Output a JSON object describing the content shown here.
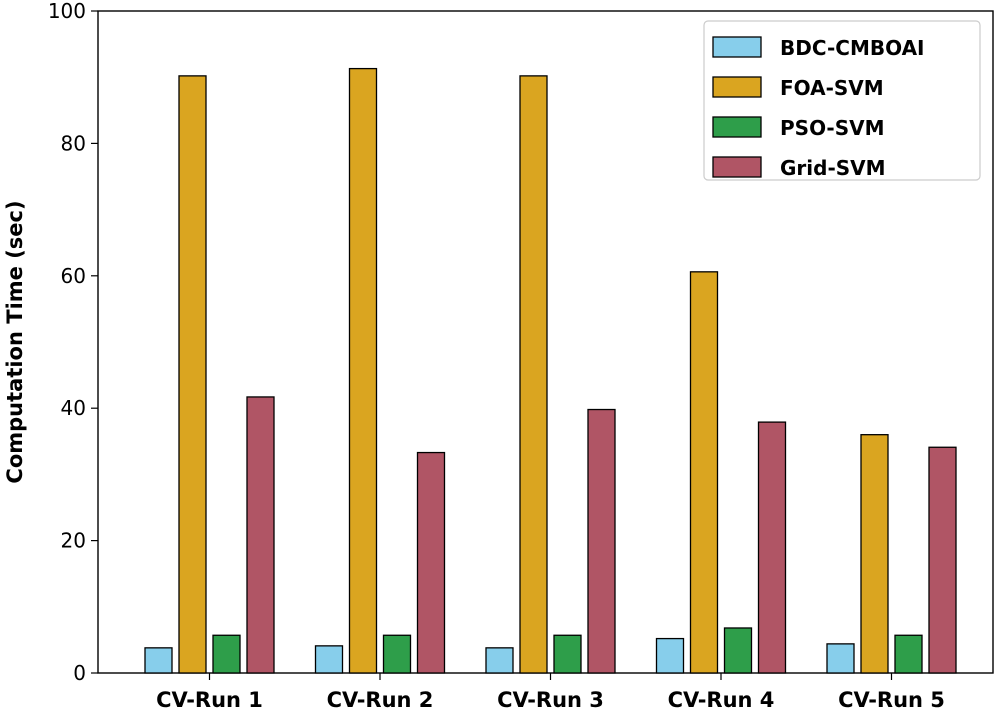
{
  "chart_data": {
    "type": "bar",
    "title": "",
    "xlabel": "",
    "ylabel": "Computation Time (sec)",
    "ylim": [
      0,
      100
    ],
    "yticks": [
      0,
      20,
      40,
      60,
      80,
      100
    ],
    "grid": false,
    "legend_position": "top-right",
    "categories": [
      "CV-Run 1",
      "CV-Run 2",
      "CV-Run 3",
      "CV-Run 4",
      "CV-Run 5"
    ],
    "series": [
      {
        "name": "BDC-CMBOAI",
        "color": "#87ceeb",
        "values": [
          3.8,
          4.1,
          3.8,
          5.2,
          4.4
        ]
      },
      {
        "name": "FOA-SVM",
        "color": "#daa520",
        "values": [
          90.2,
          91.3,
          90.2,
          60.6,
          36.0
        ]
      },
      {
        "name": "PSO-SVM",
        "color": "#2e9e4a",
        "values": [
          5.7,
          5.7,
          5.7,
          6.8,
          5.7
        ]
      },
      {
        "name": "Grid-SVM",
        "color": "#b05565",
        "values": [
          41.7,
          33.3,
          39.8,
          37.9,
          34.1
        ]
      }
    ]
  }
}
